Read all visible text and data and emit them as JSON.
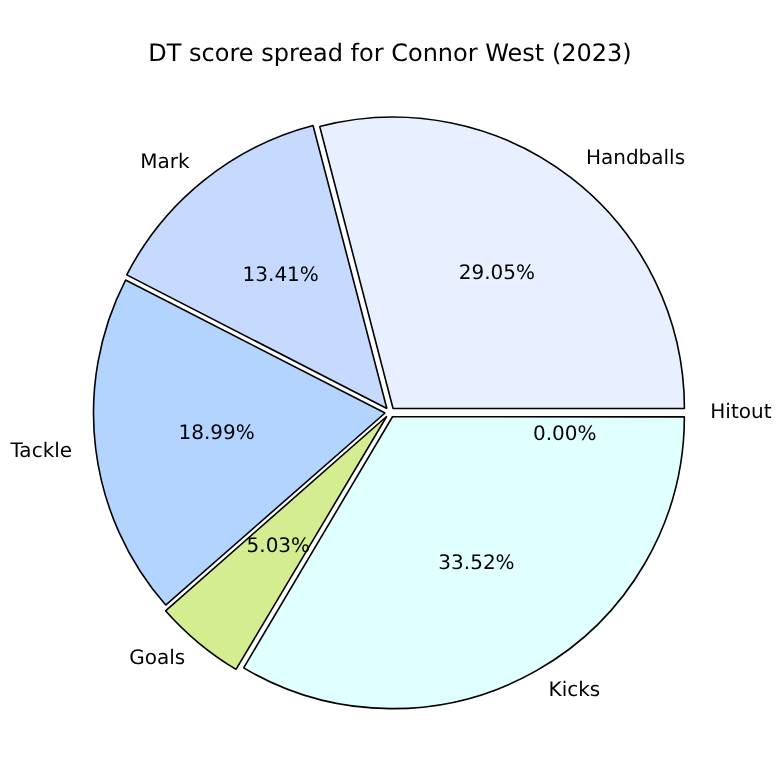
{
  "chart_data": {
    "type": "pie",
    "title": "DT score spread for Connor West (2023)",
    "categories": [
      "Hitout",
      "Kicks",
      "Goals",
      "Tackle",
      "Mark",
      "Handballs"
    ],
    "values": [
      0,
      33.52,
      5.03,
      18.99,
      13.41,
      29.05
    ],
    "value_labels": [
      "0.00%",
      "33.52%",
      "5.03%",
      "18.99%",
      "13.41%",
      "29.05%"
    ],
    "colors": [
      "#ffffff",
      "#e0ffff",
      "#d4ed91",
      "#b3d4ff",
      "#c6d9ff",
      "#e8f0ff"
    ],
    "legend": false
  }
}
